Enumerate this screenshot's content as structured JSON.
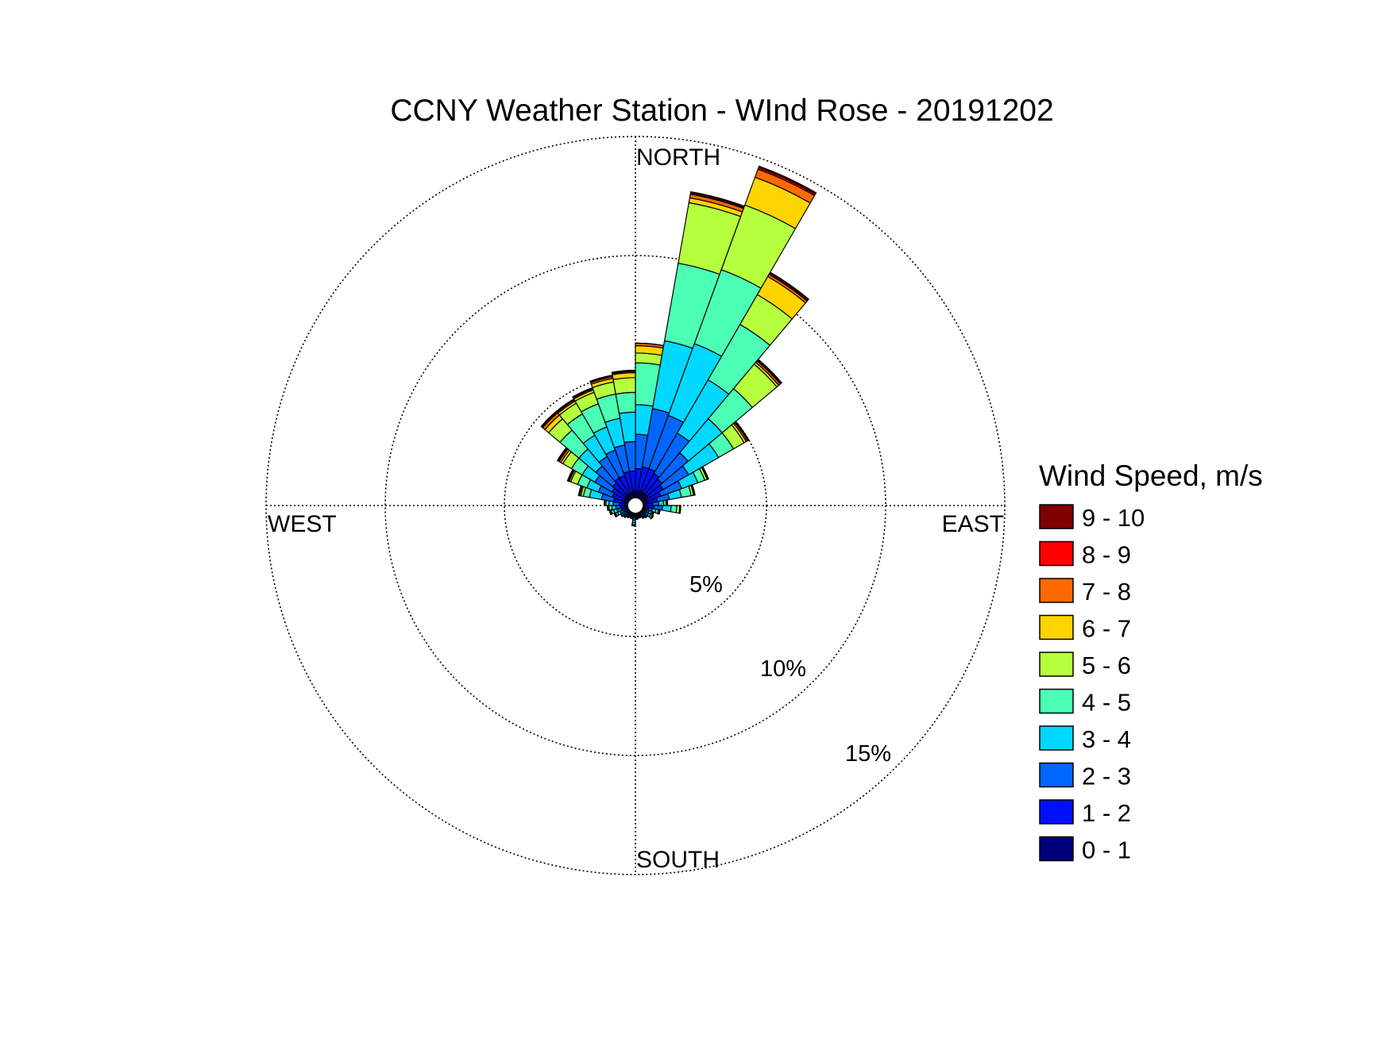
{
  "chart_data": {
    "type": "windrose",
    "title": "CCNY Weather Station - WInd Rose - 20191202",
    "direction_labels": {
      "north": "NORTH",
      "south": "SOUTH",
      "east": "EAST",
      "west": "WEST"
    },
    "ring_labels": [
      "5%",
      "10%",
      "15%"
    ],
    "ring_values": [
      5,
      10,
      15
    ],
    "rmax": 15,
    "legend": {
      "title": "Wind Speed, m/s",
      "placement": "right",
      "bins": [
        {
          "label": "9 - 10",
          "color": "#800000"
        },
        {
          "label": "8 - 9",
          "color": "#ff0000"
        },
        {
          "label": "7 - 8",
          "color": "#ff6a00"
        },
        {
          "label": "6 - 7",
          "color": "#ffd400"
        },
        {
          "label": "5 - 6",
          "color": "#b6ff3e"
        },
        {
          "label": "4 - 5",
          "color": "#4bffb4"
        },
        {
          "label": "3 - 4",
          "color": "#00d8ff"
        },
        {
          "label": "2 - 3",
          "color": "#0066ff"
        },
        {
          "label": "1 - 2",
          "color": "#0010ff"
        },
        {
          "label": "0 - 1",
          "color": "#00007a"
        }
      ]
    },
    "speed_colors": [
      "#00007a",
      "#0010ff",
      "#0066ff",
      "#00d8ff",
      "#4bffb4",
      "#b6ff3e",
      "#ffd400",
      "#ff6a00",
      "#ff0000",
      "#800000"
    ],
    "center_hole_percent": 0.35,
    "sectors": [
      {
        "direction_deg": 0,
        "cumulative_percent": [
          0.6,
          1.5,
          2.9,
          4.1,
          5.8,
          6.2,
          6.5,
          6.6,
          6.6,
          6.6
        ]
      },
      {
        "direction_deg": 10,
        "cumulative_percent": [
          0.6,
          1.6,
          4.0,
          6.8,
          10.0,
          12.5,
          12.7,
          12.85,
          12.9,
          12.95
        ]
      },
      {
        "direction_deg": 20,
        "cumulative_percent": [
          0.6,
          1.6,
          3.9,
          7.0,
          10.2,
          13.0,
          14.2,
          14.55,
          14.62,
          14.68
        ]
      },
      {
        "direction_deg": 30,
        "cumulative_percent": [
          0.6,
          1.5,
          3.4,
          5.9,
          8.5,
          9.9,
          10.75,
          10.85,
          10.9,
          10.95
        ]
      },
      {
        "direction_deg": 40,
        "cumulative_percent": [
          0.6,
          1.4,
          2.8,
          4.6,
          6.2,
          7.5,
          7.6,
          7.68,
          7.72,
          7.76
        ]
      },
      {
        "direction_deg": 50,
        "cumulative_percent": [
          0.6,
          1.3,
          2.5,
          3.9,
          4.6,
          5.1,
          5.2,
          5.26,
          5.29,
          5.32
        ]
      },
      {
        "direction_deg": 60,
        "cumulative_percent": [
          0.5,
          1.1,
          2.0,
          2.7,
          3.0,
          3.1,
          3.12,
          3.14,
          3.15,
          3.16
        ]
      },
      {
        "direction_deg": 70,
        "cumulative_percent": [
          0.5,
          0.9,
          1.4,
          1.9,
          2.3,
          2.4,
          2.42,
          2.44,
          2.45,
          2.46
        ]
      },
      {
        "direction_deg": 80,
        "cumulative_percent": [
          0.45,
          0.7,
          0.95,
          1.15,
          1.25,
          1.28,
          1.3,
          1.31,
          1.31,
          1.31
        ]
      },
      {
        "direction_deg": 90,
        "cumulative_percent": [
          0.45,
          0.75,
          1.1,
          1.45,
          1.68,
          1.8,
          1.82,
          1.83,
          1.84,
          1.84
        ]
      },
      {
        "direction_deg": 100,
        "cumulative_percent": [
          0.4,
          0.55,
          0.7,
          0.85,
          0.95,
          1.0,
          1.01,
          1.02,
          1.02,
          1.02
        ]
      },
      {
        "direction_deg": 110,
        "cumulative_percent": [
          0.4,
          0.5,
          0.6,
          0.7,
          0.75,
          0.78,
          0.79,
          0.8,
          0.8,
          0.8
        ]
      },
      {
        "direction_deg": 120,
        "cumulative_percent": [
          0.4,
          0.5,
          0.62,
          0.72,
          0.8,
          0.82,
          0.83,
          0.84,
          0.84,
          0.84
        ]
      },
      {
        "direction_deg": 130,
        "cumulative_percent": [
          0.38,
          0.45,
          0.52,
          0.58,
          0.62,
          0.64,
          0.65,
          0.65,
          0.65,
          0.65
        ]
      },
      {
        "direction_deg": 140,
        "cumulative_percent": [
          0.38,
          0.44,
          0.5,
          0.55,
          0.58,
          0.6,
          0.6,
          0.6,
          0.6,
          0.6
        ]
      },
      {
        "direction_deg": 150,
        "cumulative_percent": [
          0.37,
          0.42,
          0.46,
          0.5,
          0.52,
          0.53,
          0.53,
          0.53,
          0.53,
          0.53
        ]
      },
      {
        "direction_deg": 160,
        "cumulative_percent": [
          0.37,
          0.42,
          0.46,
          0.49,
          0.51,
          0.52,
          0.52,
          0.52,
          0.52,
          0.52
        ]
      },
      {
        "direction_deg": 170,
        "cumulative_percent": [
          0.37,
          0.43,
          0.48,
          0.52,
          0.55,
          0.56,
          0.56,
          0.56,
          0.56,
          0.56
        ]
      },
      {
        "direction_deg": 180,
        "cumulative_percent": [
          0.38,
          0.48,
          0.6,
          0.7,
          0.78,
          0.82,
          0.83,
          0.83,
          0.83,
          0.83
        ]
      },
      {
        "direction_deg": 190,
        "cumulative_percent": [
          0.37,
          0.42,
          0.47,
          0.51,
          0.54,
          0.55,
          0.55,
          0.55,
          0.55,
          0.55
        ]
      },
      {
        "direction_deg": 200,
        "cumulative_percent": [
          0.37,
          0.42,
          0.47,
          0.5,
          0.52,
          0.53,
          0.53,
          0.53,
          0.53,
          0.53
        ]
      },
      {
        "direction_deg": 210,
        "cumulative_percent": [
          0.37,
          0.43,
          0.49,
          0.53,
          0.56,
          0.57,
          0.57,
          0.57,
          0.57,
          0.57
        ]
      },
      {
        "direction_deg": 220,
        "cumulative_percent": [
          0.38,
          0.45,
          0.52,
          0.58,
          0.62,
          0.64,
          0.64,
          0.64,
          0.64,
          0.64
        ]
      },
      {
        "direction_deg": 230,
        "cumulative_percent": [
          0.38,
          0.46,
          0.55,
          0.62,
          0.67,
          0.69,
          0.7,
          0.7,
          0.7,
          0.7
        ]
      },
      {
        "direction_deg": 240,
        "cumulative_percent": [
          0.4,
          0.52,
          0.66,
          0.78,
          0.86,
          0.9,
          0.91,
          0.92,
          0.92,
          0.92
        ]
      },
      {
        "direction_deg": 250,
        "cumulative_percent": [
          0.42,
          0.58,
          0.76,
          0.9,
          1.0,
          1.05,
          1.06,
          1.07,
          1.07,
          1.07
        ]
      },
      {
        "direction_deg": 260,
        "cumulative_percent": [
          0.42,
          0.6,
          0.8,
          0.96,
          1.08,
          1.12,
          1.13,
          1.14,
          1.14,
          1.14
        ]
      },
      {
        "direction_deg": 270,
        "cumulative_percent": [
          0.45,
          0.66,
          0.9,
          1.08,
          1.2,
          1.25,
          1.26,
          1.27,
          1.27,
          1.27
        ]
      },
      {
        "direction_deg": 280,
        "cumulative_percent": [
          0.5,
          0.9,
          1.4,
          1.9,
          2.15,
          2.25,
          2.3,
          2.33,
          2.34,
          2.35
        ]
      },
      {
        "direction_deg": 290,
        "cumulative_percent": [
          0.5,
          1.0,
          1.6,
          2.1,
          2.5,
          2.8,
          2.86,
          2.9,
          2.92,
          2.94
        ]
      },
      {
        "direction_deg": 300,
        "cumulative_percent": [
          0.5,
          1.1,
          1.9,
          2.5,
          3.0,
          3.4,
          3.5,
          3.58,
          3.62,
          3.66
        ]
      },
      {
        "direction_deg": 310,
        "cumulative_percent": [
          0.55,
          1.2,
          2.1,
          3.0,
          4.0,
          4.6,
          4.8,
          4.92,
          4.96,
          5.0
        ]
      },
      {
        "direction_deg": 320,
        "cumulative_percent": [
          0.55,
          1.3,
          2.3,
          3.3,
          4.3,
          4.8,
          4.9,
          4.95,
          4.98,
          5.0
        ]
      },
      {
        "direction_deg": 330,
        "cumulative_percent": [
          0.55,
          1.3,
          2.4,
          3.4,
          4.4,
          4.9,
          5.0,
          5.05,
          5.08,
          5.1
        ]
      },
      {
        "direction_deg": 340,
        "cumulative_percent": [
          0.55,
          1.4,
          2.5,
          3.6,
          4.6,
          5.1,
          5.25,
          5.32,
          5.35,
          5.38
        ]
      },
      {
        "direction_deg": 350,
        "cumulative_percent": [
          0.6,
          1.4,
          2.6,
          3.8,
          4.6,
          5.2,
          5.4,
          5.45,
          5.48,
          5.5
        ]
      }
    ]
  }
}
